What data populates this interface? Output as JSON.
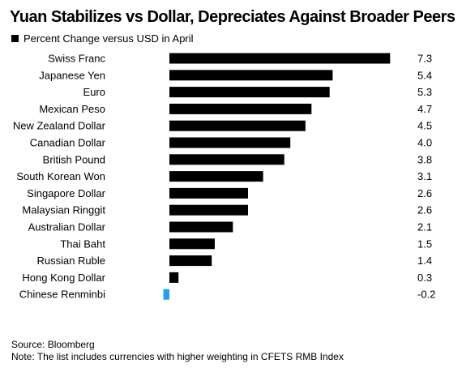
{
  "chart_data": {
    "type": "bar",
    "orientation": "horizontal",
    "title": "Yuan Stabilizes vs Dollar, Depreciates Against Broader Peers",
    "xlabel": "",
    "ylabel": "",
    "xlim": [
      -0.2,
      7.3
    ],
    "grid": false,
    "legend": "top-left",
    "series": [
      {
        "name": "Percent Change versus USD in April",
        "categories": [
          "Swiss Franc",
          "Japanese Yen",
          "Euro",
          "Mexican Peso",
          "New Zealand Dollar",
          "Canadian Dollar",
          "British Pound",
          "South Korean Won",
          "Singapore Dollar",
          "Malaysian Ringgit",
          "Australian Dollar",
          "Thai Baht",
          "Russian Ruble",
          "Hong Kong Dollar",
          "Chinese Renminbi"
        ],
        "values": [
          7.3,
          5.4,
          5.3,
          4.7,
          4.5,
          4.0,
          3.8,
          3.1,
          2.6,
          2.6,
          2.1,
          1.5,
          1.4,
          0.3,
          -0.2
        ],
        "labels": [
          "7.3",
          "5.4",
          "5.3",
          "4.7",
          "4.5",
          "4.0",
          "3.8",
          "3.1",
          "2.6",
          "2.6",
          "2.1",
          "1.5",
          "1.4",
          "0.3",
          "-0.2"
        ]
      }
    ],
    "colors": {
      "bar": "#000000",
      "highlight": "#1fa3f0",
      "highlight_category": "Chinese Renminbi"
    }
  },
  "source": "Source: Bloomberg",
  "note": "Note: The list includes currencies with higher weighting in CFETS RMB Index"
}
